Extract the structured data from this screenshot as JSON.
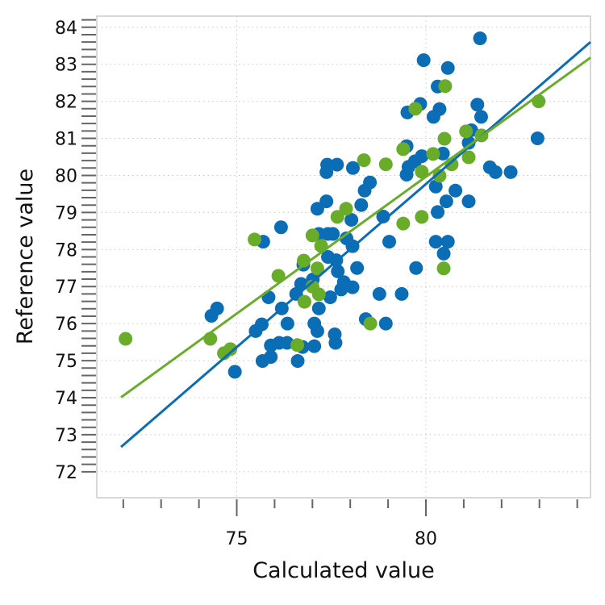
{
  "chart_data": {
    "type": "scatter",
    "title": "",
    "xlabel": "Calculated value",
    "ylabel": "Reference value",
    "xlim": [
      71.3,
      84.35
    ],
    "ylim": [
      71.3,
      84.3
    ],
    "x_tick_labels": [
      "75",
      "80"
    ],
    "y_tick_labels": [
      "72",
      "73",
      "74",
      "75",
      "76",
      "77",
      "78",
      "79",
      "80",
      "81",
      "82",
      "83",
      "84"
    ],
    "grid": "dotted, at labelled ticks",
    "legend": "none",
    "colors": {
      "blue": "#0b6db5",
      "green": "#68ac2a",
      "frame": "#cccccc",
      "grid": "#c8c8c8"
    },
    "series": [
      {
        "color": "#0b6db5",
        "points": [
          [
            81.43,
            83.7
          ],
          [
            79.94,
            83.11
          ],
          [
            80.58,
            82.9
          ],
          [
            80.31,
            82.4
          ],
          [
            79.85,
            81.93
          ],
          [
            79.51,
            81.7
          ],
          [
            80.36,
            81.79
          ],
          [
            80.2,
            81.58
          ],
          [
            81.36,
            81.91
          ],
          [
            81.46,
            81.58
          ],
          [
            81.2,
            81.22
          ],
          [
            81.13,
            80.88
          ],
          [
            82.95,
            81.0
          ],
          [
            79.49,
            80.79
          ],
          [
            80.45,
            80.59
          ],
          [
            79.89,
            80.52
          ],
          [
            79.71,
            80.38
          ],
          [
            79.54,
            80.23
          ],
          [
            79.49,
            80.02
          ],
          [
            81.69,
            80.22
          ],
          [
            81.84,
            80.09
          ],
          [
            82.24,
            80.09
          ],
          [
            80.26,
            79.7
          ],
          [
            80.78,
            79.59
          ],
          [
            80.54,
            79.3
          ],
          [
            81.13,
            79.3
          ],
          [
            80.31,
            79.01
          ],
          [
            78.07,
            80.2
          ],
          [
            77.39,
            80.29
          ],
          [
            77.65,
            80.29
          ],
          [
            77.37,
            80.09
          ],
          [
            78.52,
            79.81
          ],
          [
            78.38,
            79.59
          ],
          [
            78.29,
            79.2
          ],
          [
            77.37,
            79.3
          ],
          [
            77.13,
            79.1
          ],
          [
            78.87,
            78.89
          ],
          [
            78.03,
            78.8
          ],
          [
            76.17,
            78.6
          ],
          [
            75.7,
            78.21
          ],
          [
            77.17,
            78.42
          ],
          [
            77.41,
            78.42
          ],
          [
            77.54,
            78.42
          ],
          [
            77.9,
            78.3
          ],
          [
            78.06,
            78.09
          ],
          [
            79.03,
            78.21
          ],
          [
            80.26,
            78.21
          ],
          [
            80.58,
            78.21
          ],
          [
            80.47,
            77.89
          ],
          [
            77.41,
            77.8
          ],
          [
            77.63,
            77.71
          ],
          [
            76.76,
            77.59
          ],
          [
            77.67,
            77.41
          ],
          [
            78.18,
            77.5
          ],
          [
            79.74,
            77.5
          ],
          [
            77.01,
            77.19
          ],
          [
            76.7,
            77.07
          ],
          [
            77.83,
            77.12
          ],
          [
            78.06,
            76.98
          ],
          [
            77.76,
            76.92
          ],
          [
            76.57,
            76.8
          ],
          [
            75.84,
            76.71
          ],
          [
            77.47,
            76.71
          ],
          [
            78.77,
            76.8
          ],
          [
            79.36,
            76.8
          ],
          [
            74.48,
            76.41
          ],
          [
            74.33,
            76.21
          ],
          [
            76.19,
            76.41
          ],
          [
            77.17,
            76.41
          ],
          [
            75.66,
            75.98
          ],
          [
            75.5,
            75.8
          ],
          [
            76.34,
            76.0
          ],
          [
            77.05,
            76.0
          ],
          [
            77.13,
            75.8
          ],
          [
            77.59,
            75.71
          ],
          [
            78.41,
            76.12
          ],
          [
            78.94,
            76.0
          ],
          [
            75.9,
            75.41
          ],
          [
            76.12,
            75.48
          ],
          [
            76.33,
            75.48
          ],
          [
            76.74,
            75.37
          ],
          [
            77.05,
            75.39
          ],
          [
            77.61,
            75.48
          ],
          [
            75.68,
            74.99
          ],
          [
            75.9,
            75.1
          ],
          [
            76.61,
            74.99
          ],
          [
            74.95,
            74.7
          ]
        ],
        "fit_line": [
          [
            71.94,
            72.67
          ],
          [
            84.35,
            83.6
          ]
        ]
      },
      {
        "color": "#68ac2a",
        "points": [
          [
            72.06,
            75.59
          ],
          [
            74.3,
            75.59
          ],
          [
            74.66,
            75.2
          ],
          [
            74.83,
            75.31
          ],
          [
            75.47,
            78.27
          ],
          [
            76.1,
            77.29
          ],
          [
            76.6,
            75.42
          ],
          [
            76.77,
            77.7
          ],
          [
            76.79,
            76.59
          ],
          [
            77.0,
            78.38
          ],
          [
            77.0,
            77.0
          ],
          [
            77.13,
            77.49
          ],
          [
            77.17,
            76.79
          ],
          [
            77.23,
            78.1
          ],
          [
            77.66,
            78.88
          ],
          [
            77.89,
            79.1
          ],
          [
            78.36,
            80.41
          ],
          [
            78.53,
            76.0
          ],
          [
            78.94,
            80.3
          ],
          [
            79.4,
            78.7
          ],
          [
            79.4,
            80.71
          ],
          [
            79.72,
            81.8
          ],
          [
            79.89,
            78.88
          ],
          [
            79.89,
            80.1
          ],
          [
            80.19,
            80.58
          ],
          [
            80.36,
            79.99
          ],
          [
            80.47,
            77.49
          ],
          [
            80.49,
            80.99
          ],
          [
            80.51,
            82.41
          ],
          [
            80.68,
            80.3
          ],
          [
            81.06,
            81.19
          ],
          [
            81.13,
            80.49
          ],
          [
            81.47,
            81.08
          ],
          [
            82.98,
            82.0
          ]
        ],
        "fit_line": [
          [
            71.94,
            74.01
          ],
          [
            84.35,
            83.18
          ]
        ]
      }
    ]
  }
}
